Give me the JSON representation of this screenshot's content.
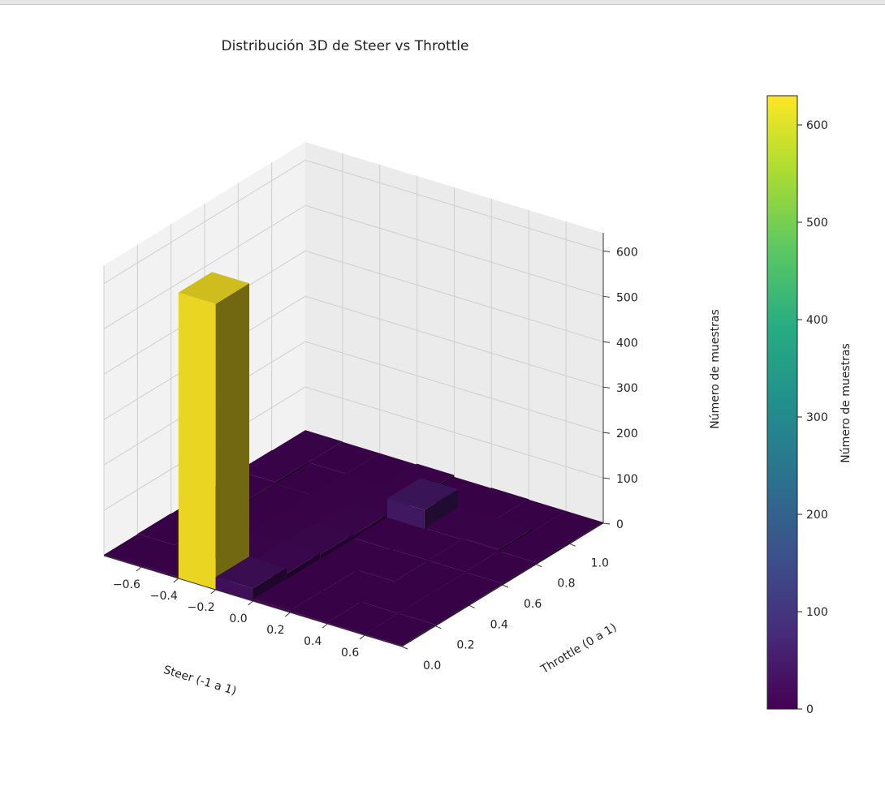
{
  "chart_data": {
    "type": "bar3d",
    "title": "Distribución 3D de Steer vs Throttle",
    "xlabel": "Steer (-1 a 1)",
    "ylabel": "Throttle (0 a 1)",
    "zlabel": "Número de muestras",
    "colorbar_label": "Número de muestras",
    "colormap": "viridis",
    "x_ticks": [
      "−0.6",
      "−0.4",
      "−0.2",
      "0.0",
      "0.2",
      "0.4",
      "0.6"
    ],
    "y_ticks": [
      "0.0",
      "0.2",
      "0.4",
      "0.6",
      "0.8",
      "1.0"
    ],
    "z_ticks": [
      "0",
      "100",
      "200",
      "300",
      "400",
      "500",
      "600"
    ],
    "colorbar_ticks": [
      "0",
      "100",
      "200",
      "300",
      "400",
      "500",
      "600"
    ],
    "zlim": [
      0,
      640
    ],
    "clim": [
      0,
      630
    ],
    "x_bin_edges": [
      -0.8,
      -0.6,
      -0.4,
      -0.2,
      0.0,
      0.2,
      0.4,
      0.6,
      0.8
    ],
    "y_bin_edges": [
      0.0,
      0.2,
      0.4,
      0.6,
      0.8,
      1.0,
      1.2
    ],
    "counts": [
      [
        2,
        3,
        2,
        4,
        6,
        5
      ],
      [
        3,
        2,
        3,
        2,
        2,
        4
      ],
      [
        630,
        10,
        8,
        6,
        5,
        4
      ],
      [
        28,
        15,
        12,
        10,
        8,
        6
      ],
      [
        4,
        3,
        2,
        3,
        45,
        2
      ],
      [
        3,
        2,
        3,
        4,
        5,
        3
      ],
      [
        2,
        3,
        2,
        4,
        8,
        2
      ],
      [
        2,
        3,
        2,
        3,
        4,
        2
      ]
    ]
  }
}
